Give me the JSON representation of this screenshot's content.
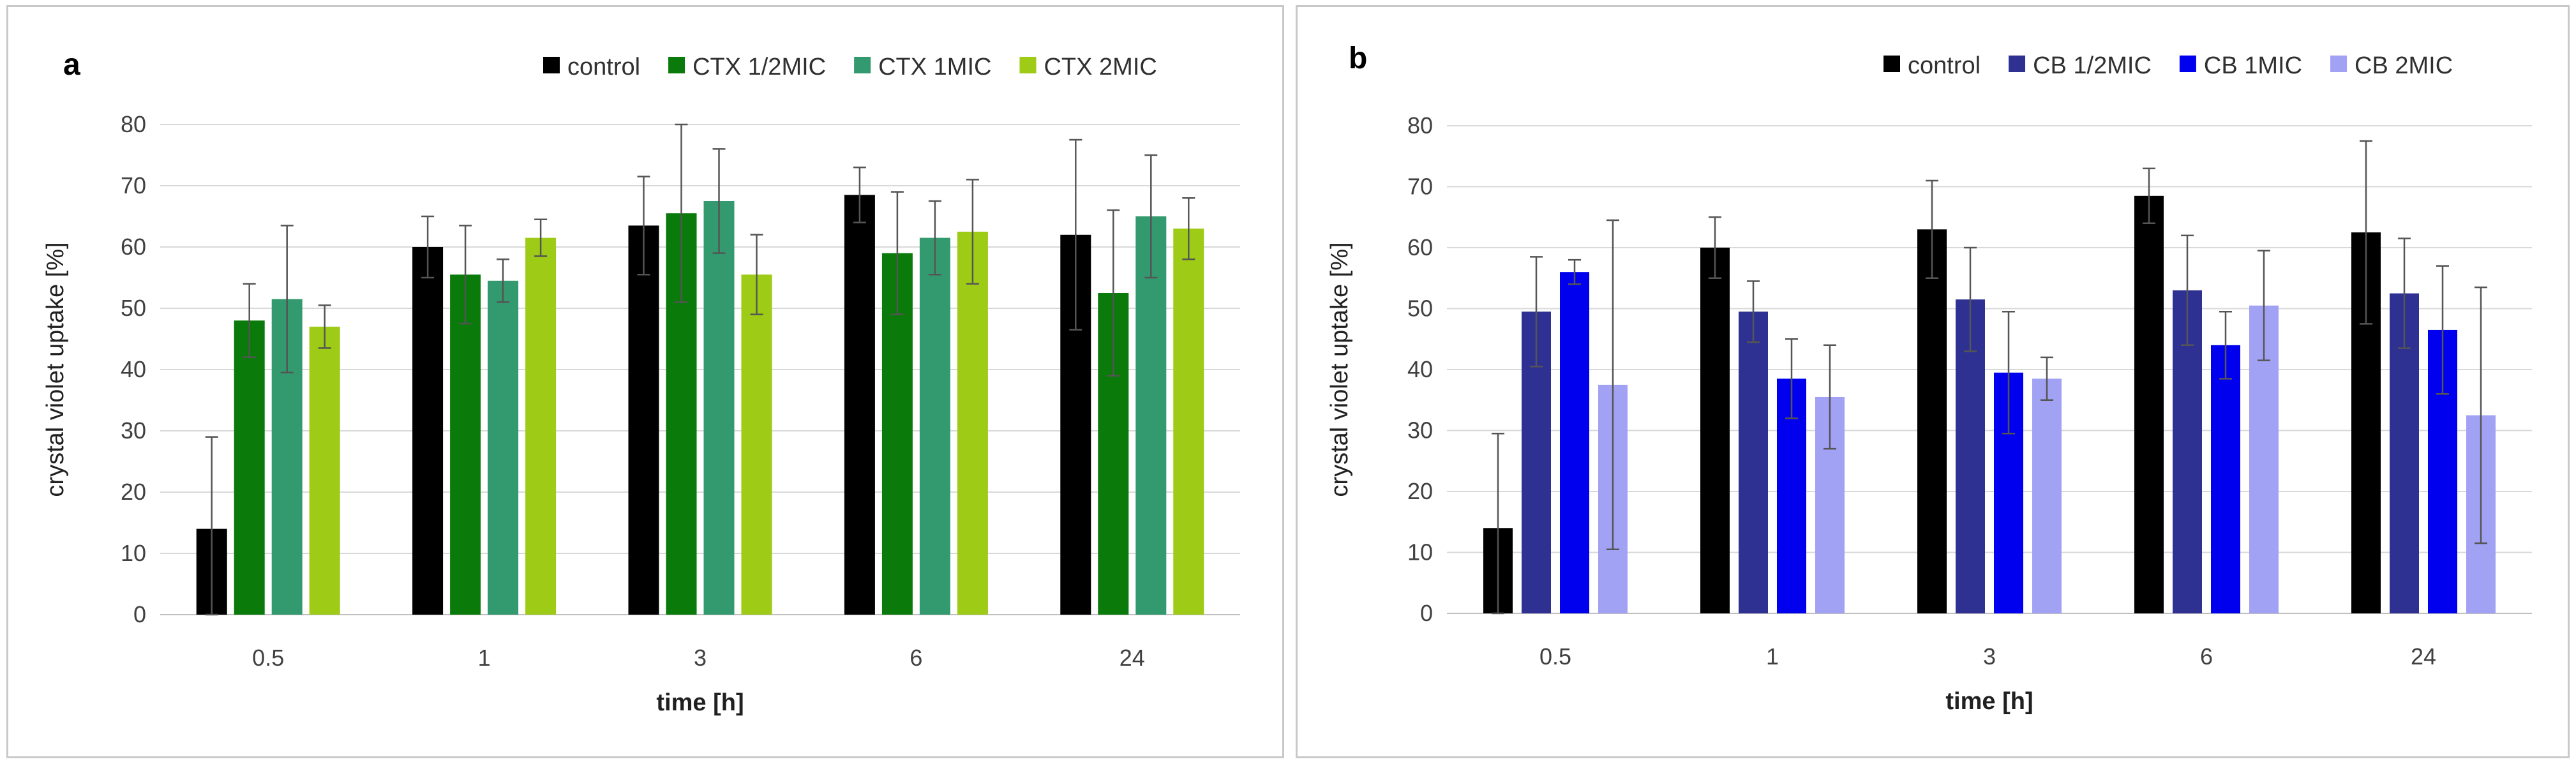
{
  "chart_data": [
    {
      "type": "bar",
      "panel_label": "a",
      "categories": [
        "0.5",
        "1",
        "3",
        "6",
        "24"
      ],
      "xlabel": "time  [h]",
      "ylabel": "crystal violet uptake [%]",
      "ylim": [
        0,
        80
      ],
      "yticks": [
        "0",
        "10",
        "20",
        "30",
        "40",
        "50",
        "60",
        "70",
        "80"
      ],
      "grid": true,
      "legend": "top-right",
      "series": [
        {
          "name": "control",
          "color": "#000000",
          "values": [
            14,
            60,
            63.5,
            68.5,
            62
          ],
          "errors": [
            15,
            5,
            8,
            4.5,
            15.5
          ]
        },
        {
          "name": "CTX 1/2MIC",
          "color": "#0a7a0a",
          "values": [
            48,
            55.5,
            65.5,
            59,
            52.5
          ],
          "errors": [
            6,
            8,
            14.5,
            10,
            13.5
          ]
        },
        {
          "name": "CTX 1MIC",
          "color": "#33996e",
          "values": [
            51.5,
            54.5,
            67.5,
            61.5,
            65
          ],
          "errors": [
            12,
            3.5,
            8.5,
            6,
            10
          ]
        },
        {
          "name": "CTX 2MIC",
          "color": "#9ecb16",
          "values": [
            47,
            61.5,
            55.5,
            62.5,
            63
          ],
          "errors": [
            3.5,
            3,
            6.5,
            8.5,
            5
          ]
        }
      ]
    },
    {
      "type": "bar",
      "panel_label": "b",
      "categories": [
        "0.5",
        "1",
        "3",
        "6",
        "24"
      ],
      "xlabel": "time [h]",
      "ylabel": "crystal violet uptake [%]",
      "ylim": [
        0,
        80
      ],
      "yticks": [
        "0",
        "10",
        "20",
        "30",
        "40",
        "50",
        "60",
        "70",
        "80"
      ],
      "grid": true,
      "legend": "top-right",
      "series": [
        {
          "name": "control",
          "color": "#000000",
          "values": [
            14,
            60,
            63,
            68.5,
            62.5
          ],
          "errors": [
            15.5,
            5,
            8,
            4.5,
            15
          ]
        },
        {
          "name": "CB 1/2MIC",
          "color": "#2e3192",
          "values": [
            49.5,
            49.5,
            51.5,
            53,
            52.5
          ],
          "errors": [
            9,
            5,
            8.5,
            9,
            9
          ]
        },
        {
          "name": "CB 1MIC",
          "color": "#0000ee",
          "values": [
            56,
            38.5,
            39.5,
            44,
            46.5
          ],
          "errors": [
            2,
            6.5,
            10,
            5.5,
            10.5
          ]
        },
        {
          "name": "CB 2MIC",
          "color": "#a2a2f4",
          "values": [
            37.5,
            35.5,
            38.5,
            50.5,
            32.5
          ],
          "errors": [
            27,
            8.5,
            3.5,
            9,
            21
          ]
        }
      ]
    }
  ]
}
